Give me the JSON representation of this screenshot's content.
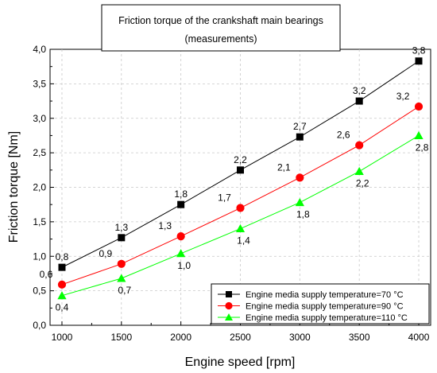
{
  "chart_data": {
    "type": "line",
    "title": "Friction torque of the crankshaft main bearings",
    "subtitle": "(measurements)",
    "xlabel": "Engine speed [rpm]",
    "ylabel": "Friction torque [Nm]",
    "x": [
      1000,
      1500,
      2000,
      2500,
      3000,
      3500,
      4000
    ],
    "xlim": [
      900,
      4100
    ],
    "ylim": [
      0,
      4.0
    ],
    "x_ticks": [
      "1000",
      "1500",
      "2000",
      "2500",
      "3000",
      "3500",
      "4000"
    ],
    "y_ticks": [
      "0,0",
      "0,5",
      "1,0",
      "1,5",
      "2,0",
      "2,5",
      "3,0",
      "3,5",
      "4,0"
    ],
    "y_tick_values": [
      0,
      0.5,
      1.0,
      1.5,
      2.0,
      2.5,
      3.0,
      3.5,
      4.0
    ],
    "grid": true,
    "legend_position": "bottom-right",
    "series": [
      {
        "name": "Engine media supply temperature=70 °C",
        "color": "#000000",
        "marker": "square",
        "values": [
          0.84,
          1.27,
          1.75,
          2.25,
          2.73,
          3.25,
          3.83
        ],
        "labels": [
          "0,8",
          "1,3",
          "1,8",
          "2,2",
          "2,7",
          "3,2",
          "3,8"
        ],
        "label_side": "above"
      },
      {
        "name": "Engine media supply temperature=90 °C",
        "color": "#ff0000",
        "marker": "circle",
        "values": [
          0.59,
          0.89,
          1.29,
          1.7,
          2.14,
          2.61,
          3.17
        ],
        "labels": [
          "0,6",
          "0,9",
          "1,3",
          "1,7",
          "2,1",
          "2,6",
          "3,2"
        ],
        "label_side": "above-left"
      },
      {
        "name": "Engine media supply temperature=110 °C",
        "color": "#00ff00",
        "marker": "triangle",
        "values": [
          0.43,
          0.68,
          1.04,
          1.4,
          1.78,
          2.23,
          2.75
        ],
        "labels": [
          "0,4",
          "0,7",
          "1,0",
          "1,4",
          "1,8",
          "2,2",
          "2,8"
        ],
        "label_side": "below"
      }
    ]
  }
}
